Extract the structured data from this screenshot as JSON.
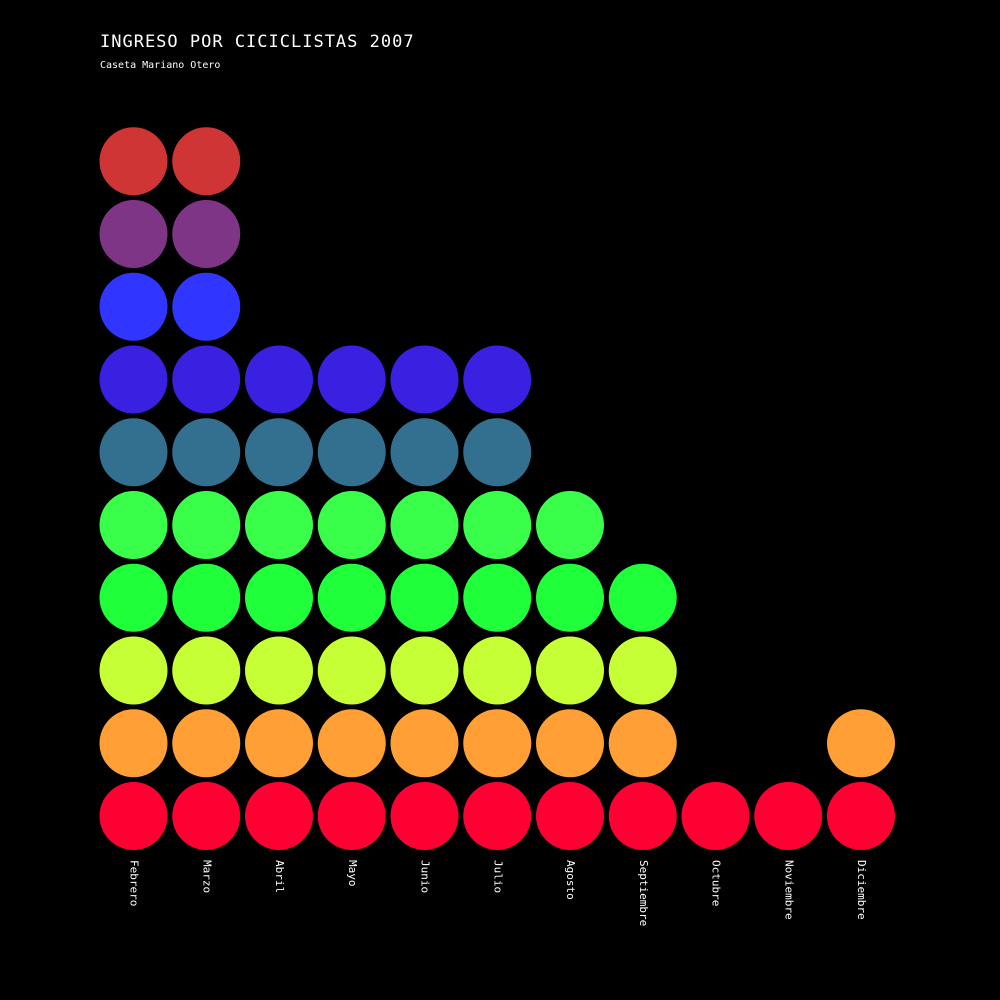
{
  "header": {
    "title": "INGRESO POR CICICLISTAS 2007",
    "subtitle": "Caseta Mariano Otero"
  },
  "chart_data": {
    "type": "dot-column",
    "title": "INGRESO POR CICICLISTAS 2007",
    "subtitle": "Caseta Mariano Otero",
    "categories": [
      "Febrero",
      "Marzo",
      "Abril",
      "Mayo",
      "Junio",
      "Julio",
      "Agosto",
      "Septiembre",
      "Octubre",
      "Noviembre",
      "Diciembre"
    ],
    "values": [
      10,
      10,
      7,
      7,
      7,
      7,
      5,
      4,
      1,
      1,
      2
    ],
    "level_colors": [
      "#ff0033",
      "#ff9f35",
      "#c6ff35",
      "#1fff3a",
      "#3aff4a",
      "#33708f",
      "#3a20e0",
      "#3035ff",
      "#7f3585",
      "#d03535"
    ],
    "xlabel": "",
    "ylabel": "",
    "grid": false,
    "legend": "none"
  }
}
